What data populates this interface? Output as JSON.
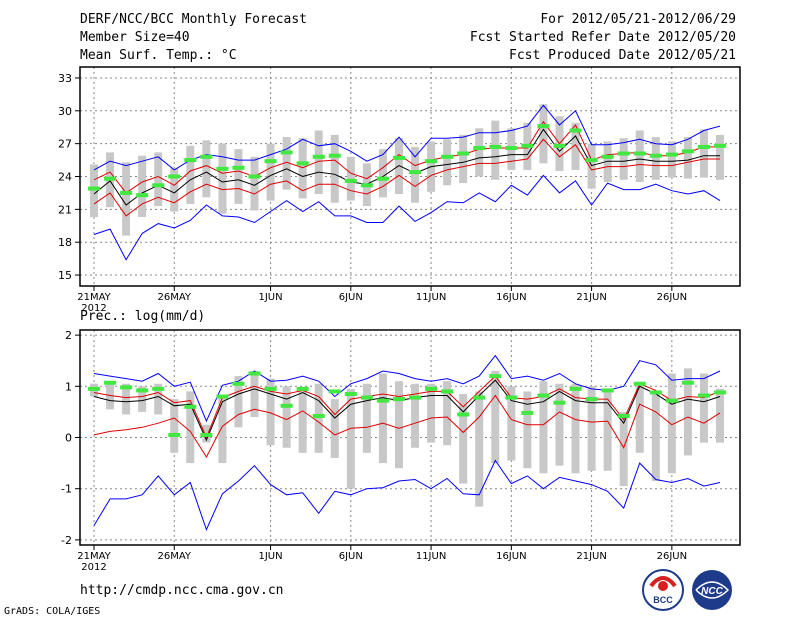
{
  "header": {
    "left": [
      "DERF/NCC/BCC Monthly Forecast",
      "Member Size=40",
      "Mean Surf. Temp.: °C"
    ],
    "right": [
      "For 2012/05/21-2012/06/29",
      "Fcst Started Refer Date 2012/05/20",
      "Fcst Produced Date 2012/05/21"
    ]
  },
  "panel2_label": "Prec.: log(mm/d)",
  "footer": {
    "url": "http://cmdp.ncc.cma.gov.cn",
    "credit": "GrADS: COLA/IGES"
  },
  "logos": [
    {
      "name": "bcc-logo",
      "text": "BCC",
      "color": "#1e3a8a",
      "accent": "#d62020"
    },
    {
      "name": "ncc-logo",
      "text": "NCC",
      "color": "#1e3a8a"
    }
  ],
  "colors": {
    "envelope": "#0000ff",
    "spread": "#e00000",
    "mean": "#000000",
    "box": "#c8c8c8",
    "median": "#40e840",
    "grid": "#888888"
  },
  "chart_data": [
    {
      "type": "line",
      "title": "Mean Surf. Temp.: °C",
      "ylabel": "°C",
      "ylim": [
        14,
        34
      ],
      "yticks": [
        15,
        18,
        21,
        24,
        27,
        30,
        33
      ],
      "xticks": [
        {
          "day": 0,
          "label": "21MAY",
          "sub": "2012"
        },
        {
          "day": 5,
          "label": "26MAY",
          "sub": ""
        },
        {
          "day": 11,
          "label": "1JUN",
          "sub": ""
        },
        {
          "day": 16,
          "label": "6JUN",
          "sub": ""
        },
        {
          "day": 21,
          "label": "11JUN",
          "sub": ""
        },
        {
          "day": 26,
          "label": "16JUN",
          "sub": ""
        },
        {
          "day": 31,
          "label": "21JUN",
          "sub": ""
        },
        {
          "day": 36,
          "label": "26JUN",
          "sub": ""
        }
      ],
      "x": [
        0,
        1,
        2,
        3,
        4,
        5,
        6,
        7,
        8,
        9,
        10,
        11,
        12,
        13,
        14,
        15,
        16,
        17,
        18,
        19,
        20,
        21,
        22,
        23,
        24,
        25,
        26,
        27,
        28,
        29,
        30,
        31,
        32,
        33,
        34,
        35,
        36,
        37,
        38,
        39
      ],
      "series": [
        {
          "name": "max",
          "color": "#0000ff",
          "values": [
            24.6,
            25.4,
            25,
            25.4,
            25.8,
            24.6,
            25.5,
            26,
            25.8,
            25.5,
            25.5,
            26,
            26.5,
            27.4,
            26.8,
            27,
            26.3,
            25.4,
            26,
            27.6,
            25.8,
            27.5,
            27.5,
            27.6,
            28,
            28,
            28.2,
            28.6,
            30.5,
            28.7,
            30,
            26.9,
            26.9,
            27.1,
            27.4,
            27,
            26.9,
            27.4,
            28.2,
            28.6
          ]
        },
        {
          "name": "upper",
          "color": "#e00000",
          "values": [
            23.7,
            24.4,
            22.5,
            23.5,
            24,
            23.2,
            24.5,
            25,
            24.3,
            24.5,
            24,
            24.8,
            25.3,
            24.8,
            25.4,
            25.5,
            24.3,
            23.8,
            24.8,
            26,
            25,
            25.5,
            25.8,
            26,
            26.5,
            26.6,
            26.6,
            26.6,
            29,
            27,
            28.7,
            25.5,
            26,
            26.1,
            26.2,
            25.9,
            25.9,
            26.2,
            26.7,
            26.7
          ]
        },
        {
          "name": "mean",
          "color": "#000000",
          "values": [
            22.4,
            23.6,
            21.4,
            22.5,
            23.2,
            22.5,
            23.7,
            24.4,
            23.5,
            23.7,
            23.2,
            24.1,
            24.7,
            24,
            24.4,
            24.2,
            23.5,
            23.3,
            24,
            25,
            24.3,
            24.9,
            25.1,
            25.3,
            25.7,
            25.8,
            26,
            26,
            28.3,
            26.3,
            27.7,
            25,
            25.4,
            25.4,
            25.6,
            25.4,
            25.4,
            25.5,
            25.9,
            25.9
          ]
        },
        {
          "name": "lower",
          "color": "#e00000",
          "values": [
            21.5,
            22.5,
            20.4,
            21.5,
            22.1,
            21.6,
            22.6,
            23.3,
            22.8,
            22.9,
            22.4,
            23.3,
            23.6,
            22.7,
            23.3,
            23.3,
            22.7,
            22.4,
            23.1,
            24.1,
            23.1,
            24.1,
            24.6,
            24.9,
            25.2,
            25.2,
            25.4,
            25.6,
            27.4,
            25.8,
            26.9,
            24.6,
            24.9,
            24.9,
            25.1,
            25,
            25,
            25.3,
            25.6,
            25.6
          ]
        },
        {
          "name": "min",
          "color": "#0000ff",
          "values": [
            18.7,
            19.2,
            16.4,
            18.8,
            19.7,
            19.3,
            20,
            21.4,
            20.4,
            20.3,
            19.8,
            20.8,
            21.8,
            20.8,
            21.7,
            20.4,
            20.4,
            19.8,
            19.8,
            21.3,
            19.9,
            20.7,
            21.7,
            21.6,
            22.5,
            21.7,
            23.2,
            22.3,
            24.1,
            22.5,
            23.6,
            21.4,
            23.4,
            22.8,
            22.8,
            23.3,
            22.7,
            22.4,
            22.7,
            21.8
          ]
        }
      ],
      "boxes": [
        [
          20.3,
          25.1
        ],
        [
          21.2,
          26.2
        ],
        [
          18.6,
          25.3
        ],
        [
          20.3,
          25.9
        ],
        [
          21.3,
          26.2
        ],
        [
          20.8,
          24.8
        ],
        [
          21.5,
          26.8
        ],
        [
          22.1,
          27.3
        ],
        [
          20.6,
          27
        ],
        [
          21.5,
          26.5
        ],
        [
          20.9,
          25.8
        ],
        [
          21.8,
          27
        ],
        [
          22.8,
          27.6
        ],
        [
          22,
          27.5
        ],
        [
          22.4,
          28.2
        ],
        [
          21.6,
          27.8
        ],
        [
          21.8,
          25.8
        ],
        [
          21.3,
          25.2
        ],
        [
          22.1,
          26.5
        ],
        [
          22.4,
          27.5
        ],
        [
          21.6,
          26.7
        ],
        [
          22.6,
          27.2
        ],
        [
          23.2,
          27.4
        ],
        [
          23.4,
          27.8
        ],
        [
          24,
          28.4
        ],
        [
          23.7,
          29.1
        ],
        [
          24.6,
          28.4
        ],
        [
          24.6,
          28.9
        ],
        [
          25.2,
          30.6
        ],
        [
          24.5,
          29.5
        ],
        [
          24.6,
          28.9
        ],
        [
          22.9,
          27
        ],
        [
          23.5,
          27.2
        ],
        [
          23.7,
          27.5
        ],
        [
          23.5,
          28.2
        ],
        [
          23.7,
          27.6
        ],
        [
          23.9,
          27.2
        ],
        [
          23.8,
          27.6
        ],
        [
          23.9,
          28.3
        ],
        [
          23.7,
          27.8
        ]
      ],
      "medians": [
        22.9,
        23.8,
        22.5,
        22.3,
        23.2,
        24,
        25.5,
        25.8,
        24.7,
        24.8,
        24,
        25.4,
        26.2,
        25.2,
        25.8,
        25.9,
        23.6,
        23.2,
        23.8,
        25.7,
        24.4,
        25.4,
        25.8,
        26.1,
        26.6,
        26.7,
        26.6,
        26.8,
        28.6,
        26.8,
        28.2,
        25.5,
        25.8,
        26.1,
        26.1,
        25.9,
        26,
        26.3,
        26.7,
        26.8
      ]
    },
    {
      "type": "line",
      "title": "Prec.: log(mm/d)",
      "ylabel": "log(mm/d)",
      "ylim": [
        -2.1,
        2.1
      ],
      "yticks": [
        -2,
        -1,
        0,
        1,
        2
      ],
      "xticks": [
        {
          "day": 0,
          "label": "21MAY",
          "sub": "2012"
        },
        {
          "day": 5,
          "label": "26MAY",
          "sub": ""
        },
        {
          "day": 11,
          "label": "1JUN",
          "sub": ""
        },
        {
          "day": 16,
          "label": "6JUN",
          "sub": ""
        },
        {
          "day": 21,
          "label": "11JUN",
          "sub": ""
        },
        {
          "day": 26,
          "label": "16JUN",
          "sub": ""
        },
        {
          "day": 31,
          "label": "21JUN",
          "sub": ""
        },
        {
          "day": 36,
          "label": "26JUN",
          "sub": ""
        }
      ],
      "x": [
        0,
        1,
        2,
        3,
        4,
        5,
        6,
        7,
        8,
        9,
        10,
        11,
        12,
        13,
        14,
        15,
        16,
        17,
        18,
        19,
        20,
        21,
        22,
        23,
        24,
        25,
        26,
        27,
        28,
        29,
        30,
        31,
        32,
        33,
        34,
        35,
        36,
        37,
        38,
        39
      ],
      "series": [
        {
          "name": "max",
          "color": "#0000ff",
          "values": [
            1.25,
            1.2,
            1.15,
            1.1,
            1.25,
            1,
            1.08,
            0.32,
            1.02,
            1.1,
            1.3,
            1.1,
            1.12,
            1.2,
            1.1,
            0.8,
            1.05,
            1.15,
            1.3,
            1.25,
            1.15,
            1.1,
            1.15,
            1.05,
            1.2,
            1.6,
            1.15,
            1.2,
            1.12,
            1.25,
            1.05,
            0.95,
            0.92,
            1,
            1.5,
            1.42,
            1.12,
            1.15,
            1.15,
            1.3
          ]
        },
        {
          "name": "upper",
          "color": "#e00000",
          "values": [
            0.88,
            0.82,
            0.78,
            0.8,
            0.88,
            0.68,
            0.72,
            0,
            0.78,
            0.9,
            1,
            0.9,
            0.85,
            0.92,
            0.8,
            0.45,
            0.75,
            0.8,
            0.85,
            0.8,
            0.85,
            0.9,
            0.9,
            0.6,
            0.9,
            1.2,
            0.78,
            0.75,
            0.8,
            0.95,
            0.78,
            0.75,
            0.75,
            0.35,
            1.05,
            0.92,
            0.72,
            0.8,
            0.78,
            0.9
          ]
        },
        {
          "name": "mean",
          "color": "#000000",
          "values": [
            0.8,
            0.72,
            0.7,
            0.72,
            0.8,
            0.62,
            0.65,
            -0.05,
            0.7,
            0.85,
            0.95,
            0.85,
            0.75,
            0.88,
            0.72,
            0.38,
            0.65,
            0.72,
            0.78,
            0.72,
            0.78,
            0.82,
            0.82,
            0.5,
            0.82,
            1.12,
            0.72,
            0.65,
            0.7,
            0.9,
            0.72,
            0.68,
            0.68,
            0.28,
            1,
            0.85,
            0.65,
            0.75,
            0.7,
            0.8
          ]
        },
        {
          "name": "lower",
          "color": "#e00000",
          "values": [
            0.05,
            0.12,
            0.15,
            0.2,
            0.28,
            0.38,
            0.12,
            -0.38,
            0.22,
            0.45,
            0.55,
            0.48,
            0.35,
            0.52,
            0.3,
            0.05,
            0.18,
            0.2,
            0.28,
            0.18,
            0.28,
            0.38,
            0.4,
            0.1,
            0.4,
            0.82,
            0.35,
            0.25,
            0.25,
            0.5,
            0.35,
            0.3,
            0.32,
            -0.2,
            0.65,
            0.5,
            0.25,
            0.4,
            0.28,
            0.48
          ]
        },
        {
          "name": "min",
          "color": "#0000ff",
          "values": [
            -1.72,
            -1.2,
            -1.2,
            -1.12,
            -0.75,
            -1.12,
            -0.88,
            -1.8,
            -1.1,
            -0.85,
            -0.55,
            -0.92,
            -1.12,
            -1.08,
            -1.48,
            -1.05,
            -1.12,
            -1,
            -0.98,
            -0.85,
            -0.82,
            -1,
            -0.8,
            -1.1,
            -1.12,
            -0.45,
            -0.9,
            -0.75,
            -1,
            -0.78,
            -0.85,
            -0.92,
            -1.05,
            -1.38,
            -0.5,
            -0.82,
            -0.88,
            -0.8,
            -0.95,
            -0.88
          ]
        }
      ],
      "boxes": [
        [
          0.8,
          1.05
        ],
        [
          0.55,
          1.1
        ],
        [
          0.45,
          1.05
        ],
        [
          0.5,
          1
        ],
        [
          0.45,
          1.05
        ],
        [
          -0.3,
          0.75
        ],
        [
          -0.5,
          0.9
        ],
        [
          -0.1,
          0.25
        ],
        [
          -0.5,
          0.8
        ],
        [
          0.2,
          1.2
        ],
        [
          0.4,
          1.3
        ],
        [
          -0.15,
          1.15
        ],
        [
          -0.2,
          1
        ],
        [
          -0.3,
          0.95
        ],
        [
          -0.3,
          1.05
        ],
        [
          -0.4,
          0.75
        ],
        [
          -1,
          0.95
        ],
        [
          -0.3,
          1.05
        ],
        [
          -0.5,
          1.25
        ],
        [
          -0.6,
          1.1
        ],
        [
          -0.2,
          1.05
        ],
        [
          -0.1,
          1.05
        ],
        [
          -0.15,
          1.1
        ],
        [
          -0.9,
          0.85
        ],
        [
          -1.35,
          0.9
        ],
        [
          -0.5,
          1.3
        ],
        [
          -0.45,
          1
        ],
        [
          -0.6,
          0.9
        ],
        [
          -0.7,
          1.1
        ],
        [
          -0.55,
          1.05
        ],
        [
          -0.7,
          1.05
        ],
        [
          -0.65,
          1
        ],
        [
          -0.65,
          0.9
        ],
        [
          -0.95,
          0.5
        ],
        [
          -0.3,
          1.05
        ],
        [
          -0.85,
          0.9
        ],
        [
          -0.7,
          1.25
        ],
        [
          -0.35,
          1.35
        ],
        [
          -0.1,
          1.25
        ],
        [
          -0.1,
          0.95
        ]
      ],
      "medians": [
        0.95,
        1.07,
        0.98,
        0.92,
        0.95,
        0.05,
        0.6,
        0.05,
        0.8,
        1.05,
        1.25,
        0.95,
        0.62,
        0.95,
        0.42,
        0.9,
        0.85,
        0.78,
        0.72,
        0.75,
        0.78,
        0.95,
        0.9,
        0.45,
        0.78,
        1.2,
        0.78,
        0.48,
        0.82,
        0.68,
        0.95,
        0.75,
        0.92,
        0.42,
        1.05,
        0.88,
        0.72,
        1.07,
        0.82,
        0.88
      ]
    }
  ]
}
